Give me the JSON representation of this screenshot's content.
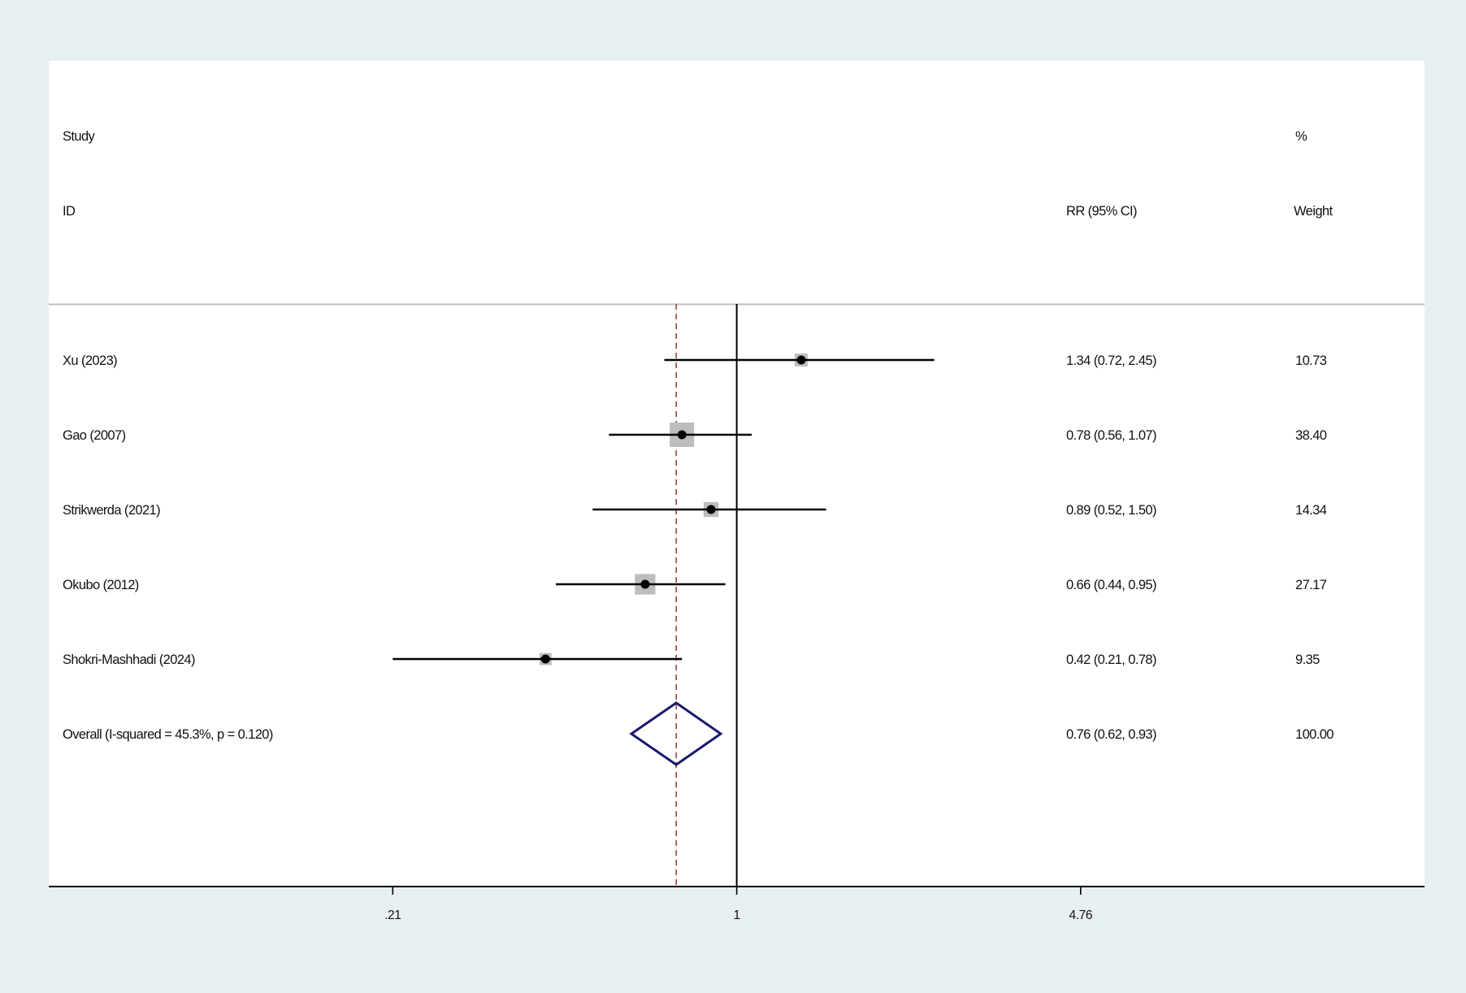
{
  "chart_data": {
    "type": "forest",
    "measure": "RR",
    "header": {
      "study_line1": "Study",
      "study_line2": "ID",
      "effect_label": "RR (95% CI)",
      "weight_line1": "%",
      "weight_line2": "Weight"
    },
    "studies": [
      {
        "label": "Xu  (2023)",
        "rr": 1.34,
        "lower": 0.72,
        "upper": 2.45,
        "ci_text": "1.34 (0.72, 2.45)",
        "weight": 10.73,
        "weight_text": "10.73"
      },
      {
        "label": "Gao  (2007)",
        "rr": 0.78,
        "lower": 0.56,
        "upper": 1.07,
        "ci_text": "0.78 (0.56, 1.07)",
        "weight": 38.4,
        "weight_text": "38.40"
      },
      {
        "label": "Strikwerda (2021)",
        "rr": 0.89,
        "lower": 0.52,
        "upper": 1.5,
        "ci_text": "0.89 (0.52, 1.50)",
        "weight": 14.34,
        "weight_text": "14.34"
      },
      {
        "label": "Okubo (2012)",
        "rr": 0.66,
        "lower": 0.44,
        "upper": 0.95,
        "ci_text": "0.66 (0.44, 0.95)",
        "weight": 27.17,
        "weight_text": "27.17"
      },
      {
        "label": "Shokri-Mashhadi (2024)",
        "rr": 0.42,
        "lower": 0.21,
        "upper": 0.78,
        "ci_text": "0.42 (0.21, 0.78)",
        "weight": 9.35,
        "weight_text": "9.35"
      }
    ],
    "overall": {
      "label": "Overall  (I-squared = 45.3%, p = 0.120)",
      "rr": 0.76,
      "lower": 0.62,
      "upper": 0.93,
      "ci_text": "0.76 (0.62, 0.93)",
      "weight_text": "100.00"
    },
    "x_axis": {
      "scale": "log",
      "ticks": [
        0.21,
        1,
        4.76
      ],
      "tick_labels": [
        ".21",
        "1",
        "4.76"
      ],
      "range": [
        0.0441,
        22.66
      ],
      "null_line": 1
    },
    "colors": {
      "background": "#e8eff1",
      "plot_background": "#ffffff",
      "ci_line": "#000000",
      "weight_box": "#bdbdbd",
      "point": "#000000",
      "overall_diamond": "#1a1a6e",
      "overall_reference_line": "#a04040",
      "null_line": "#000000",
      "header_rule": "#bfbfbf"
    }
  }
}
